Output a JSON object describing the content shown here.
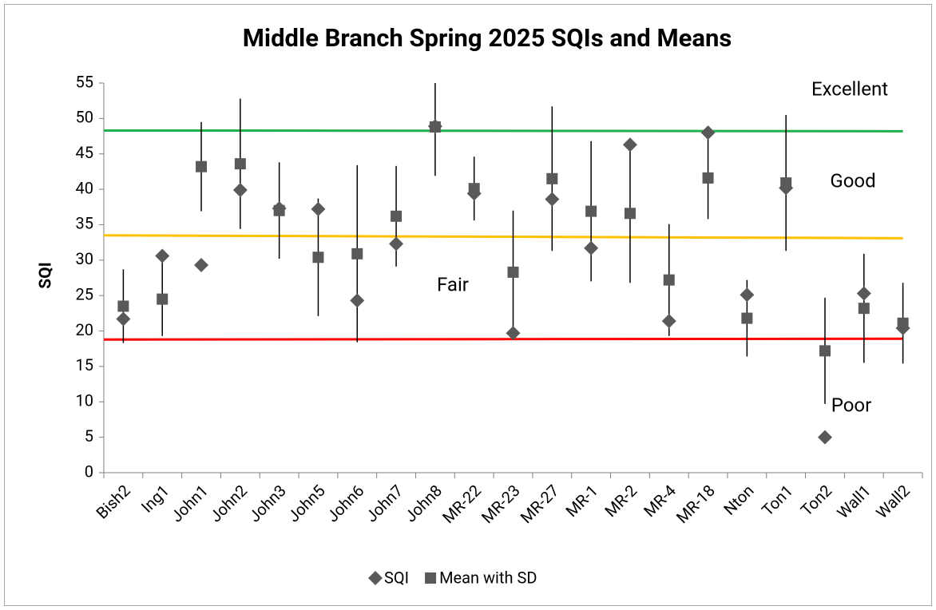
{
  "chart_data": {
    "type": "scatter",
    "title": "Middle Branch Spring 2025 SQIs and Means",
    "ylabel": "SQI",
    "categories": [
      "Bish2",
      "Ing1",
      "John1",
      "John2",
      "John3",
      "John5",
      "John6",
      "John7",
      "John8",
      "MR-22",
      "MR-23",
      "MR-27",
      "MR-1",
      "MR-2",
      "MR-4",
      "MR-18",
      "Nton",
      "Ton1",
      "Ton2",
      "Wall1",
      "Wall2"
    ],
    "series": [
      {
        "name": "SQI",
        "color": "#595959",
        "marker": "diamond",
        "values": [
          21.7,
          30.6,
          29.3,
          39.9,
          37.3,
          37.2,
          24.3,
          32.3,
          48.9,
          39.4,
          19.7,
          38.6,
          31.7,
          46.3,
          21.4,
          48.0,
          25.1,
          40.2,
          5.0,
          25.3,
          20.4
        ]
      },
      {
        "name": "Mean with SD",
        "color": "#595959",
        "marker": "square",
        "values": [
          23.5,
          24.5,
          43.2,
          43.6,
          37.0,
          30.4,
          30.9,
          36.2,
          48.8,
          40.1,
          28.3,
          41.5,
          36.9,
          36.6,
          27.2,
          41.6,
          21.8,
          40.9,
          17.2,
          23.2,
          21.1
        ],
        "errors": [
          5.2,
          5.2,
          6.3,
          9.2,
          6.8,
          8.3,
          12.5,
          7.1,
          6.9,
          4.5,
          8.7,
          10.2,
          9.9,
          9.8,
          7.9,
          5.8,
          5.4,
          9.6,
          7.5,
          7.7,
          5.7
        ]
      }
    ],
    "reference_lines": [
      {
        "color": "#22b14c",
        "values": [
          48.3,
          48.2
        ]
      },
      {
        "color": "#ffc000",
        "values": [
          33.5,
          33.1
        ]
      },
      {
        "color": "#ff0000",
        "values": [
          18.8,
          18.9
        ]
      }
    ],
    "annotations": [
      "Excellent",
      "Good",
      "Fair",
      "Poor"
    ],
    "ylim": [
      0,
      55
    ],
    "yticks": [
      0,
      5,
      10,
      15,
      20,
      25,
      30,
      35,
      40,
      45,
      50,
      55
    ],
    "grid": false,
    "legend": "bottom"
  }
}
